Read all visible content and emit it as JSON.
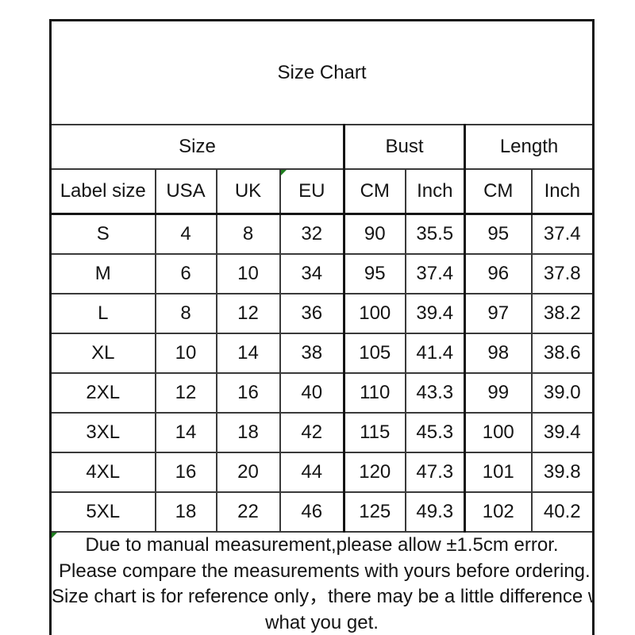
{
  "title": "Size Chart",
  "chart_data": {
    "type": "table",
    "title": "Size Chart",
    "column_groups": [
      {
        "label": "Size",
        "span": 4
      },
      {
        "label": "Bust",
        "span": 2
      },
      {
        "label": "Length",
        "span": 2
      }
    ],
    "columns": [
      "Label size",
      "USA",
      "UK",
      "EU",
      "CM",
      "Inch",
      "CM",
      "Inch"
    ],
    "rows": [
      [
        "S",
        "4",
        "8",
        "32",
        "90",
        "35.5",
        "95",
        "37.4"
      ],
      [
        "M",
        "6",
        "10",
        "34",
        "95",
        "37.4",
        "96",
        "37.8"
      ],
      [
        "L",
        "8",
        "12",
        "36",
        "100",
        "39.4",
        "97",
        "38.2"
      ],
      [
        "XL",
        "10",
        "14",
        "38",
        "105",
        "41.4",
        "98",
        "38.6"
      ],
      [
        "2XL",
        "12",
        "16",
        "40",
        "110",
        "43.3",
        "99",
        "39.0"
      ],
      [
        "3XL",
        "14",
        "18",
        "42",
        "115",
        "45.3",
        "100",
        "39.4"
      ],
      [
        "4XL",
        "16",
        "20",
        "44",
        "120",
        "47.3",
        "101",
        "39.8"
      ],
      [
        "5XL",
        "18",
        "22",
        "46",
        "125",
        "49.3",
        "102",
        "40.2"
      ]
    ],
    "error_marker_columns": [
      3
    ],
    "notes_has_marker": true
  },
  "notes": {
    "lines": [
      "Due to manual measurement,please allow ±1.5cm error.",
      " Please compare the measurements with yours before ordering.",
      "Size chart is for reference only，there may be a little difference with",
      "what you get."
    ]
  },
  "colors": {
    "header_bg": "#cdcdcd",
    "grid_thin": "#3a3a3a",
    "grid_thick": "#151515",
    "marker_green": "#1e7e1e",
    "text": "#141414",
    "bg": "#ffffff"
  }
}
